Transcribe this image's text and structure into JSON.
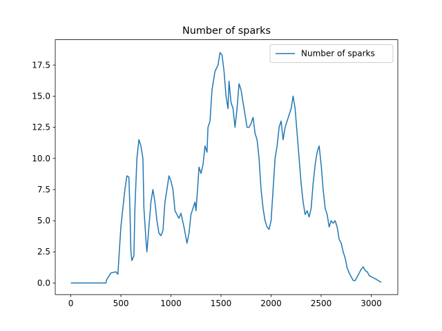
{
  "chart_data": {
    "type": "line",
    "title": "Number of sparks",
    "x": [
      0,
      350,
      360,
      400,
      450,
      470,
      480,
      500,
      520,
      540,
      560,
      580,
      590,
      600,
      610,
      630,
      640,
      660,
      680,
      700,
      720,
      730,
      750,
      760,
      780,
      800,
      820,
      840,
      860,
      880,
      900,
      920,
      940,
      960,
      980,
      1000,
      1020,
      1040,
      1060,
      1080,
      1100,
      1130,
      1160,
      1180,
      1200,
      1240,
      1250,
      1270,
      1280,
      1300,
      1320,
      1340,
      1360,
      1370,
      1390,
      1410,
      1440,
      1470,
      1490,
      1510,
      1530,
      1550,
      1570,
      1580,
      1600,
      1620,
      1640,
      1660,
      1680,
      1700,
      1720,
      1740,
      1760,
      1780,
      1800,
      1820,
      1840,
      1860,
      1880,
      1900,
      1920,
      1940,
      1960,
      1980,
      2000,
      2020,
      2040,
      2060,
      2080,
      2100,
      2120,
      2140,
      2160,
      2180,
      2200,
      2220,
      2240,
      2260,
      2280,
      2300,
      2320,
      2340,
      2360,
      2380,
      2400,
      2420,
      2440,
      2460,
      2480,
      2500,
      2520,
      2540,
      2560,
      2580,
      2600,
      2620,
      2640,
      2660,
      2680,
      2700,
      2720,
      2740,
      2760,
      2780,
      2800,
      2820,
      2840,
      2860,
      2880,
      2900,
      2920,
      2940,
      2960,
      2980,
      3000,
      3050,
      3100
    ],
    "series": [
      {
        "name": "Number of sparks",
        "color": "#1f77b4",
        "values": [
          0,
          0,
          0.3,
          0.8,
          0.9,
          0.7,
          2,
          4.5,
          6,
          7.5,
          8.6,
          8.5,
          6,
          2.5,
          1.8,
          2.2,
          6,
          10,
          11.5,
          11,
          10,
          6,
          3.5,
          2.5,
          4.5,
          6.5,
          7.5,
          6.5,
          5,
          4,
          3.8,
          4.2,
          6.5,
          7.5,
          8.6,
          8.2,
          7.5,
          5.8,
          5.5,
          5.2,
          5.6,
          4.5,
          3.2,
          4,
          5.5,
          6.5,
          5.8,
          8,
          9.3,
          8.8,
          9.5,
          11,
          10.5,
          12.5,
          13,
          15.5,
          17,
          17.5,
          18.5,
          18.3,
          17,
          15,
          14,
          16.2,
          14.5,
          14,
          12.5,
          14,
          16,
          15.5,
          14.5,
          13.5,
          12.5,
          12.5,
          12.8,
          13.3,
          12,
          11.5,
          10,
          7.5,
          6,
          5,
          4.5,
          4.3,
          5,
          7.5,
          10,
          11,
          12.5,
          13,
          11.5,
          12.5,
          13,
          13.5,
          14,
          15,
          14,
          12,
          10,
          8,
          6.5,
          5.5,
          5.8,
          5.3,
          6,
          8,
          9.5,
          10.5,
          11,
          9.5,
          7.5,
          6,
          5.5,
          4.5,
          5,
          4.8,
          5,
          4.5,
          3.5,
          3.2,
          2.5,
          2,
          1.2,
          0.8,
          0.5,
          0.2,
          0.2,
          0.5,
          0.8,
          1.1,
          1.3,
          1,
          0.9,
          0.6,
          0.5,
          0.3,
          0.05
        ]
      }
    ],
    "xlim": [
      -155.5,
      3265.5
    ],
    "ylim": [
      -0.93,
      19.53
    ],
    "xticks": [
      0,
      500,
      1000,
      1500,
      2000,
      2500,
      3000
    ],
    "yticks": [
      {
        "value": 0,
        "label": "0.0"
      },
      2.5,
      {
        "value": 5,
        "label": "5.0"
      },
      7.5,
      {
        "value": 10,
        "label": "10.0"
      },
      12.5,
      {
        "value": 15,
        "label": "15.0"
      },
      17.5
    ],
    "legend": "upper right",
    "grid": false
  }
}
